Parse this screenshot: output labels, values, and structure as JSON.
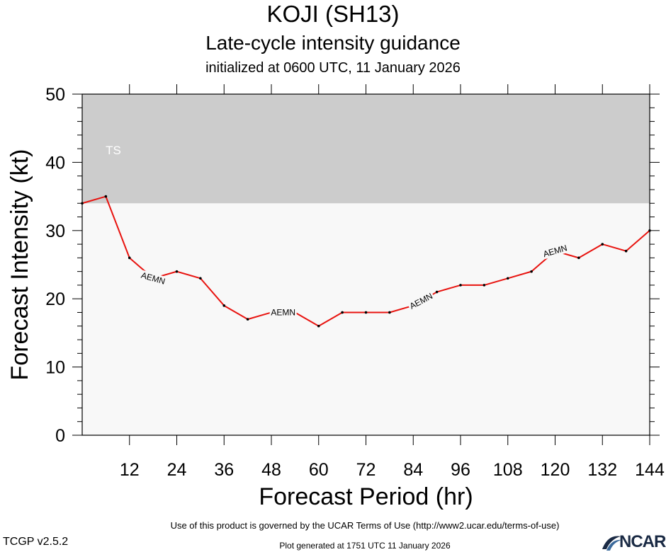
{
  "header": {
    "storm": "KOJI (SH13)",
    "product": "Late-cycle intensity guidance",
    "initialized": "initialized at 0600 UTC, 11 January 2026"
  },
  "footer": {
    "terms": "Use of this product is governed by the UCAR Terms of Use (http://www2.ucar.edu/terms-of-use)",
    "version": "TCGP v2.5.2",
    "generated": "Plot generated at 1751 UTC   11 January 2026",
    "logo": "NCAR"
  },
  "chart_data": {
    "type": "line",
    "title": "KOJI (SH13)",
    "subtitle": "Late-cycle intensity guidance",
    "xlabel": "Forecast Period (hr)",
    "ylabel": "Forecast Intensity (kt)",
    "xlim": [
      0,
      144
    ],
    "ylim": [
      0,
      50
    ],
    "xticks": [
      12,
      24,
      36,
      48,
      60,
      72,
      84,
      96,
      108,
      120,
      132,
      144
    ],
    "yticks": [
      0,
      10,
      20,
      30,
      40,
      50
    ],
    "grid": false,
    "bands": [
      {
        "label": "TS",
        "y_from": 34,
        "y_to": 50,
        "color": "#cccccc"
      }
    ],
    "background_color": "#f8f8f8",
    "series": [
      {
        "name": "AEMN",
        "color": "#e8130f",
        "x": [
          0,
          6,
          12,
          18,
          24,
          30,
          36,
          42,
          48,
          54,
          60,
          66,
          72,
          78,
          84,
          90,
          96,
          102,
          108,
          114,
          120,
          126,
          132,
          138,
          144
        ],
        "values": [
          34,
          35,
          26,
          23,
          24,
          23,
          19,
          17,
          18,
          18,
          16,
          18,
          18,
          18,
          19,
          21,
          22,
          22,
          23,
          24,
          27,
          26,
          28,
          27,
          30
        ],
        "label_positions": [
          18,
          51,
          86,
          120
        ]
      }
    ]
  }
}
